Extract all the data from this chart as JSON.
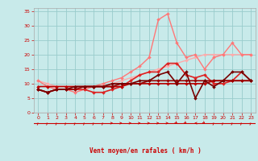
{
  "x": [
    0,
    1,
    2,
    3,
    4,
    5,
    6,
    7,
    8,
    9,
    10,
    11,
    12,
    13,
    14,
    15,
    16,
    17,
    18,
    19,
    20,
    21,
    22,
    23
  ],
  "series": [
    {
      "name": "light_pink_smooth",
      "color": "#ffaaaa",
      "linewidth": 1.0,
      "marker": "D",
      "markersize": 2.0,
      "values": [
        11,
        10,
        9,
        9,
        9,
        9,
        9,
        9,
        10,
        11,
        12,
        13,
        14,
        15,
        16,
        17,
        18,
        19,
        20,
        20,
        20,
        20,
        20,
        20
      ]
    },
    {
      "name": "pink_upper",
      "color": "#ff7777",
      "linewidth": 1.0,
      "marker": "D",
      "markersize": 2.0,
      "values": [
        11,
        9,
        8,
        8,
        7,
        8,
        9,
        10,
        11,
        12,
        14,
        16,
        19,
        32,
        34,
        24,
        19,
        20,
        15,
        19,
        20,
        24,
        20,
        20
      ]
    },
    {
      "name": "red_medium",
      "color": "#dd2222",
      "linewidth": 1.2,
      "marker": "D",
      "markersize": 2.0,
      "values": [
        8,
        7,
        8,
        8,
        8,
        8,
        7,
        7,
        8,
        9,
        11,
        13,
        14,
        14,
        17,
        17,
        13,
        12,
        13,
        10,
        10,
        11,
        14,
        11
      ]
    },
    {
      "name": "dark_red_flat1",
      "color": "#bb0000",
      "linewidth": 1.2,
      "marker": "D",
      "markersize": 2.0,
      "values": [
        9,
        9,
        9,
        9,
        9,
        9,
        9,
        9,
        9,
        9,
        10,
        10,
        10,
        10,
        10,
        10,
        10,
        10,
        10,
        11,
        11,
        11,
        11,
        11
      ]
    },
    {
      "name": "dark_red_flat2",
      "color": "#990000",
      "linewidth": 1.2,
      "marker": "D",
      "markersize": 2.0,
      "values": [
        8,
        7,
        8,
        8,
        8,
        9,
        9,
        9,
        9,
        10,
        10,
        10,
        11,
        11,
        11,
        11,
        11,
        11,
        11,
        11,
        11,
        11,
        11,
        11
      ]
    },
    {
      "name": "dark_zigzag",
      "color": "#770000",
      "linewidth": 1.2,
      "marker": "D",
      "markersize": 2.0,
      "values": [
        8,
        7,
        8,
        8,
        9,
        9,
        9,
        9,
        10,
        10,
        10,
        11,
        11,
        13,
        14,
        10,
        14,
        5,
        11,
        9,
        11,
        14,
        14,
        11
      ]
    }
  ],
  "wind_arrows": [
    225,
    225,
    225,
    225,
    225,
    225,
    225,
    225,
    270,
    270,
    270,
    270,
    270,
    270,
    270,
    315,
    315,
    90,
    315,
    225,
    225,
    225,
    225,
    225
  ],
  "xlabel": "Vent moyen/en rafales ( km/h )",
  "xlim": [
    -0.5,
    23.5
  ],
  "ylim": [
    0,
    36
  ],
  "yticks": [
    0,
    5,
    10,
    15,
    20,
    25,
    30,
    35
  ],
  "xticks": [
    0,
    1,
    2,
    3,
    4,
    5,
    6,
    7,
    8,
    9,
    10,
    11,
    12,
    13,
    14,
    15,
    16,
    17,
    18,
    19,
    20,
    21,
    22,
    23
  ],
  "bg_color": "#c8eaea",
  "grid_color": "#99cccc",
  "arrow_color": "#cc0000",
  "xlabel_color": "#cc0000",
  "tick_color": "#cc0000",
  "axis_line_color": "#cc0000"
}
